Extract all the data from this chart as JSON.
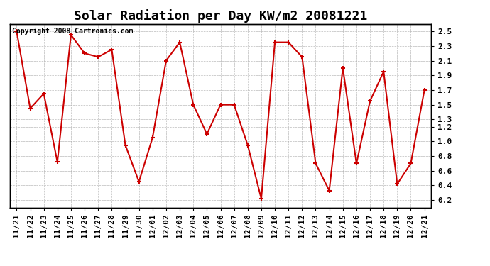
{
  "title": "Solar Radiation per Day KW/m2 20081221",
  "copyright": "Copyright 2008 Cartronics.com",
  "labels": [
    "11/21",
    "11/22",
    "11/23",
    "11/24",
    "11/25",
    "11/26",
    "11/27",
    "11/28",
    "11/29",
    "11/30",
    "12/01",
    "12/02",
    "12/03",
    "12/04",
    "12/05",
    "12/06",
    "12/07",
    "12/08",
    "12/09",
    "12/10",
    "12/11",
    "12/12",
    "12/13",
    "12/14",
    "12/15",
    "12/16",
    "12/17",
    "12/18",
    "12/19",
    "12/20",
    "12/21"
  ],
  "values": [
    2.5,
    1.45,
    1.65,
    0.72,
    2.45,
    2.2,
    2.15,
    2.25,
    0.95,
    0.45,
    1.05,
    2.1,
    2.35,
    1.5,
    1.1,
    1.5,
    1.5,
    0.95,
    0.22,
    2.35,
    2.35,
    2.15,
    0.7,
    0.33,
    2.0,
    0.7,
    1.55,
    1.95,
    0.42,
    0.7,
    1.7
  ],
  "line_color": "#cc0000",
  "marker_color": "#cc0000",
  "bg_color": "#ffffff",
  "grid_color": "#aaaaaa",
  "ylim": [
    0.1,
    2.6
  ],
  "yticks": [
    0.2,
    0.4,
    0.6,
    0.8,
    1.0,
    1.2,
    1.3,
    1.5,
    1.7,
    1.9,
    2.1,
    2.3,
    2.5
  ],
  "title_fontsize": 13,
  "tick_fontsize": 8,
  "copyright_fontsize": 7
}
